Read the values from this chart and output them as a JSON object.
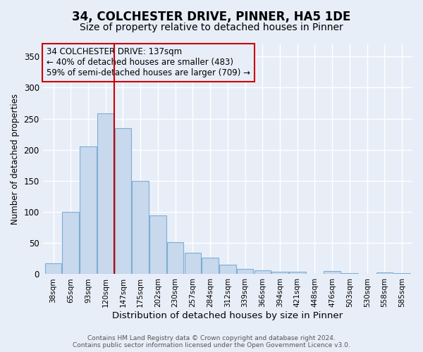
{
  "title1": "34, COLCHESTER DRIVE, PINNER, HA5 1DE",
  "title2": "Size of property relative to detached houses in Pinner",
  "xlabel": "Distribution of detached houses by size in Pinner",
  "ylabel": "Number of detached properties",
  "categories": [
    "38sqm",
    "65sqm",
    "93sqm",
    "120sqm",
    "147sqm",
    "175sqm",
    "202sqm",
    "230sqm",
    "257sqm",
    "284sqm",
    "312sqm",
    "339sqm",
    "366sqm",
    "394sqm",
    "421sqm",
    "448sqm",
    "476sqm",
    "503sqm",
    "530sqm",
    "558sqm",
    "585sqm"
  ],
  "values": [
    17,
    100,
    205,
    258,
    235,
    150,
    95,
    52,
    35,
    26,
    15,
    9,
    6,
    4,
    4,
    0,
    5,
    2,
    0,
    3,
    2
  ],
  "bar_color": "#c8d8ed",
  "bar_edge_color": "#7bafd4",
  "vline_x_index": 3.5,
  "vline_color": "#cc0000",
  "annotation_line1": "34 COLCHESTER DRIVE: 137sqm",
  "annotation_line2": "← 40% of detached houses are smaller (483)",
  "annotation_line3": "59% of semi-detached houses are larger (709) →",
  "annotation_box_edge_color": "#cc0000",
  "annotation_box_facecolor": "#e8eef8",
  "ylim": [
    0,
    370
  ],
  "yticks": [
    0,
    50,
    100,
    150,
    200,
    250,
    300,
    350
  ],
  "footer_text": "Contains HM Land Registry data © Crown copyright and database right 2024.\nContains public sector information licensed under the Open Government Licence v3.0.",
  "bg_color": "#e8eef8",
  "grid_color": "#ffffff",
  "title1_fontsize": 12,
  "title2_fontsize": 10,
  "xlabel_fontsize": 9.5,
  "ylabel_fontsize": 8.5,
  "annotation_fontsize": 8.5
}
